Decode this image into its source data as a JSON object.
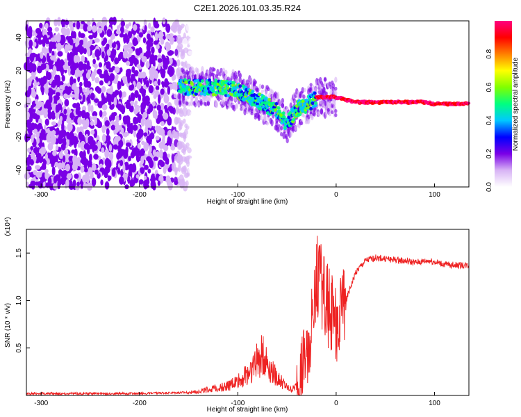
{
  "title": "C2E1.2026.101.03.35.R24",
  "chart_data": [
    {
      "type": "heatmap",
      "xlabel": "Height of straight line (km)",
      "ylabel": "Frequency (Hz)",
      "xlim": [
        -315,
        135
      ],
      "ylim": [
        -50,
        50
      ],
      "xticks": [
        -300,
        -200,
        -100,
        0,
        100
      ],
      "yticks": [
        -40,
        -20,
        0,
        20,
        40
      ],
      "colorbar": {
        "label": "Normalized spectral amplitude",
        "range": [
          0,
          1
        ],
        "ticks": [
          "0.0",
          "0.2",
          "0.4",
          "0.6",
          "0.8"
        ],
        "colors": [
          "#ffffff",
          "#d8b4f5",
          "#7a00e6",
          "#0000ff",
          "#00c8ff",
          "#00ff80",
          "#80ff00",
          "#ffff00",
          "#ff8000",
          "#ff0000",
          "#ff0080"
        ]
      },
      "regions": [
        {
          "name": "noise",
          "x": [
            -315,
            -145
          ],
          "f": [
            -50,
            50
          ],
          "level": 0.2
        },
        {
          "name": "signal_ridge",
          "points": [
            [
              -160,
              10
            ],
            [
              -120,
              10
            ],
            [
              -100,
              8
            ],
            [
              -80,
              2
            ],
            [
              -60,
              -4
            ],
            [
              -50,
              -12
            ],
            [
              -40,
              -3
            ],
            [
              -25,
              1
            ],
            [
              -20,
              4
            ],
            [
              0,
              4
            ],
            [
              20,
              1
            ],
            [
              60,
              1
            ],
            [
              90,
              1
            ],
            [
              100,
              0
            ],
            [
              135,
              0
            ]
          ]
        }
      ]
    },
    {
      "type": "line",
      "xlabel": "Height of straight line (km)",
      "ylabel": "SNR (10 * v/v)",
      "scale_label": "(x10⁴)",
      "xlim": [
        -315,
        135
      ],
      "ylim": [
        0,
        1.75
      ],
      "xticks": [
        -300,
        -200,
        -100,
        0,
        100
      ],
      "yticks": [
        "0.5",
        "1.0",
        "1.5"
      ],
      "color": "#ee2222",
      "series": [
        {
          "x": [
            -315,
            -260,
            -200,
            -150,
            -130,
            -110,
            -95,
            -85,
            -80,
            -75,
            -70,
            -65,
            -60,
            -55,
            -50,
            -45,
            -40,
            -35,
            -30,
            -25,
            -20,
            -15,
            -10,
            -5,
            0,
            5,
            10,
            20,
            30,
            40,
            60,
            80,
            95,
            110,
            135
          ],
          "y": [
            0.02,
            0.02,
            0.02,
            0.03,
            0.06,
            0.1,
            0.18,
            0.3,
            0.38,
            0.42,
            0.35,
            0.25,
            0.18,
            0.14,
            0.08,
            0.06,
            0.1,
            0.25,
            0.45,
            0.8,
            1.25,
            1.15,
            1.0,
            0.85,
            0.75,
            0.8,
            1.0,
            1.3,
            1.42,
            1.45,
            1.43,
            1.4,
            1.42,
            1.38,
            1.37
          ]
        }
      ]
    }
  ]
}
